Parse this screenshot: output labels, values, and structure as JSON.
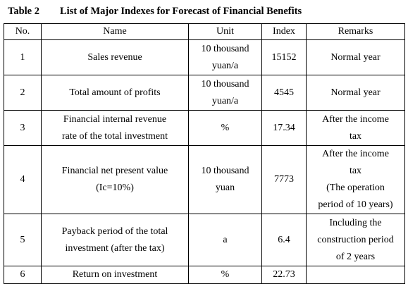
{
  "caption": {
    "label": "Table 2",
    "title": "List of Major Indexes for Forecast of Financial Benefits"
  },
  "table": {
    "headers": [
      "No.",
      "Name",
      "Unit",
      "Index",
      "Remarks"
    ],
    "rows": [
      {
        "no": "1",
        "name": "Sales revenue",
        "unit": "10 thousand\nyuan/a",
        "index": "15152",
        "remarks": "Normal year"
      },
      {
        "no": "2",
        "name": "Total amount of profits",
        "unit": "10 thousand\nyuan/a",
        "index": "4545",
        "remarks": "Normal year"
      },
      {
        "no": "3",
        "name": "Financial internal revenue\nrate of the total investment",
        "unit": "%",
        "index": "17.34",
        "remarks": "After the income\ntax"
      },
      {
        "no": "4",
        "name": "Financial net present value\n(Ic=10%)",
        "unit": "10 thousand\nyuan",
        "index": "7773",
        "remarks": "After the income\ntax\n(The operation\nperiod of 10 years)"
      },
      {
        "no": "5",
        "name": "Payback period of the total\ninvestment (after the tax)",
        "unit": "a",
        "index": "6.4",
        "remarks": "Including the\nconstruction period\nof 2 years"
      },
      {
        "no": "6",
        "name": "Return on investment",
        "unit": "%",
        "index": "22.73",
        "remarks": ""
      }
    ]
  }
}
